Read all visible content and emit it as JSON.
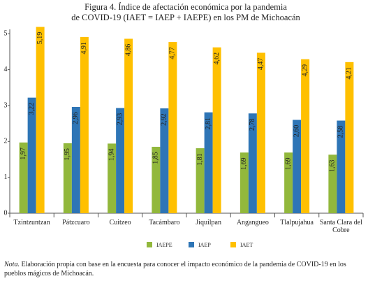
{
  "chart_data": {
    "type": "bar",
    "title": [
      "Figura 4. Índice de afectación económica por la pandemia",
      "de COVID-19 (IAET = IAEP + IAEPE) en los PM de Michoacán"
    ],
    "categories": [
      "Tzintzuntzan",
      "Pátzcuaro",
      "Cuitzeo",
      "Tacámbaro",
      "Jiquilpan",
      "Angangueo",
      "Tlalpujahua",
      "Santa Clara del Cobre"
    ],
    "series": [
      {
        "name": "IAEPE",
        "color": "#92b83c",
        "values": [
          1.97,
          1.95,
          1.94,
          1.85,
          1.81,
          1.69,
          1.69,
          1.63
        ],
        "value_labels": [
          "1,97",
          "1,95",
          "1,94",
          "1,85",
          "1,81",
          "1,69",
          "1,69",
          "1,63"
        ]
      },
      {
        "name": "IAEP",
        "color": "#2e75b6",
        "values": [
          3.22,
          2.96,
          2.93,
          2.92,
          2.81,
          2.78,
          2.6,
          2.58
        ],
        "value_labels": [
          "3,22",
          "2,96",
          "2,93",
          "2,92",
          "2,81",
          "2,78",
          "2,60",
          "2,58"
        ]
      },
      {
        "name": "IAET",
        "color": "#ffc000",
        "values": [
          5.19,
          4.91,
          4.86,
          4.77,
          4.62,
          4.47,
          4.29,
          4.21
        ],
        "value_labels": [
          "5,19",
          "4,91",
          "4,86",
          "4,77",
          "4,62",
          "4,47",
          "4,29",
          "4,21"
        ]
      }
    ],
    "ylim": [
      0,
      5.2
    ],
    "yticks": [
      0,
      1,
      2,
      3,
      4,
      5
    ],
    "grid": false,
    "note_label": "Nota.",
    "note": "Elaboración propia con base en la encuesta para conocer el impacto económico de la pandemia de COVID-19 en los pueblos mágicos de Michoacán."
  }
}
